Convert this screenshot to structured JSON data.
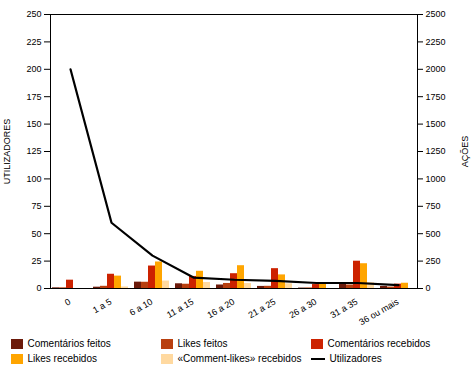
{
  "chart_data": {
    "type": "bar",
    "categories": [
      "0",
      "1 a 5",
      "6 a 10",
      "11 a 15",
      "16 a 20",
      "21 a 25",
      "26 a 30",
      "31 a 35",
      "36 ou mais"
    ],
    "series": [
      {
        "name": "Comentários feitos",
        "color": "#6B1A0A",
        "axis": "y2",
        "type": "bar",
        "values": [
          6,
          12,
          58,
          43,
          32,
          19,
          4,
          38,
          19
        ]
      },
      {
        "name": "Likes feitos",
        "color": "#B84010",
        "axis": "y2",
        "type": "bar",
        "values": [
          6,
          20,
          57,
          39,
          46,
          20,
          5,
          32,
          13
        ]
      },
      {
        "name": "Comentários recebidos",
        "color": "#CC2200",
        "axis": "y2",
        "type": "bar",
        "values": [
          76,
          130,
          205,
          110,
          135,
          181,
          36,
          249,
          40
        ]
      },
      {
        "name": "Likes recebidos",
        "color": "#FFA500",
        "axis": "y2",
        "type": "bar",
        "values": [
          0,
          113,
          242,
          157,
          208,
          124,
          43,
          226,
          48
        ]
      },
      {
        "name": "«Comment-likes» recebidos",
        "color": "#FFD9A0",
        "axis": "y2",
        "type": "bar",
        "values": [
          0,
          14,
          68,
          55,
          45,
          43,
          0,
          52,
          0
        ]
      },
      {
        "name": "Utilizadores",
        "color": "#000000",
        "type": "line",
        "values": [
          200,
          60,
          30,
          10,
          8,
          7,
          5,
          5,
          3
        ]
      }
    ],
    "ylabel": "UTILIZADORES",
    "y2label": "AÇÕES",
    "ylim": [
      0,
      250
    ],
    "yticks": [
      0,
      25,
      50,
      75,
      100,
      125,
      150,
      175,
      200,
      225,
      250
    ],
    "y2lim": [
      0,
      2500
    ],
    "y2ticks": [
      0,
      250,
      500,
      750,
      1000,
      1250,
      1500,
      1750,
      2000,
      2250,
      2500
    ],
    "legend": "bottom",
    "grid": false
  }
}
